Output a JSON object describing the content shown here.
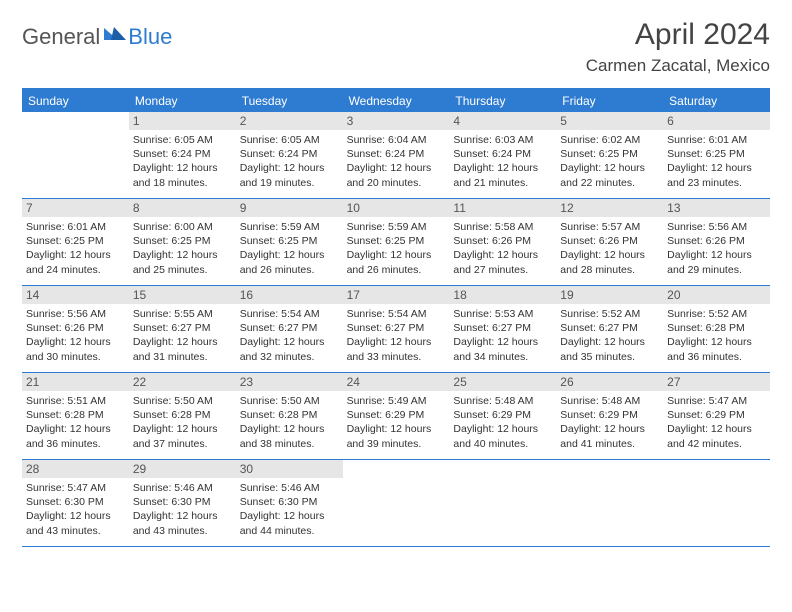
{
  "logo": {
    "general": "General",
    "blue": "Blue"
  },
  "title": "April 2024",
  "location": "Carmen Zacatal, Mexico",
  "colors": {
    "accent": "#2e7cd1",
    "daynum_bg": "#e6e6e6",
    "text": "#333333",
    "muted": "#555555",
    "bg": "#ffffff"
  },
  "fonts": {
    "title_size": 30,
    "location_size": 17,
    "weekday_size": 12,
    "daynum_size": 12,
    "body_size": 10.5
  },
  "weekdays": [
    "Sunday",
    "Monday",
    "Tuesday",
    "Wednesday",
    "Thursday",
    "Friday",
    "Saturday"
  ],
  "first_day_index": 1,
  "days": [
    {
      "n": 1,
      "sr": "6:05 AM",
      "ss": "6:24 PM",
      "dl": "12 hours and 18 minutes."
    },
    {
      "n": 2,
      "sr": "6:05 AM",
      "ss": "6:24 PM",
      "dl": "12 hours and 19 minutes."
    },
    {
      "n": 3,
      "sr": "6:04 AM",
      "ss": "6:24 PM",
      "dl": "12 hours and 20 minutes."
    },
    {
      "n": 4,
      "sr": "6:03 AM",
      "ss": "6:24 PM",
      "dl": "12 hours and 21 minutes."
    },
    {
      "n": 5,
      "sr": "6:02 AM",
      "ss": "6:25 PM",
      "dl": "12 hours and 22 minutes."
    },
    {
      "n": 6,
      "sr": "6:01 AM",
      "ss": "6:25 PM",
      "dl": "12 hours and 23 minutes."
    },
    {
      "n": 7,
      "sr": "6:01 AM",
      "ss": "6:25 PM",
      "dl": "12 hours and 24 minutes."
    },
    {
      "n": 8,
      "sr": "6:00 AM",
      "ss": "6:25 PM",
      "dl": "12 hours and 25 minutes."
    },
    {
      "n": 9,
      "sr": "5:59 AM",
      "ss": "6:25 PM",
      "dl": "12 hours and 26 minutes."
    },
    {
      "n": 10,
      "sr": "5:59 AM",
      "ss": "6:25 PM",
      "dl": "12 hours and 26 minutes."
    },
    {
      "n": 11,
      "sr": "5:58 AM",
      "ss": "6:26 PM",
      "dl": "12 hours and 27 minutes."
    },
    {
      "n": 12,
      "sr": "5:57 AM",
      "ss": "6:26 PM",
      "dl": "12 hours and 28 minutes."
    },
    {
      "n": 13,
      "sr": "5:56 AM",
      "ss": "6:26 PM",
      "dl": "12 hours and 29 minutes."
    },
    {
      "n": 14,
      "sr": "5:56 AM",
      "ss": "6:26 PM",
      "dl": "12 hours and 30 minutes."
    },
    {
      "n": 15,
      "sr": "5:55 AM",
      "ss": "6:27 PM",
      "dl": "12 hours and 31 minutes."
    },
    {
      "n": 16,
      "sr": "5:54 AM",
      "ss": "6:27 PM",
      "dl": "12 hours and 32 minutes."
    },
    {
      "n": 17,
      "sr": "5:54 AM",
      "ss": "6:27 PM",
      "dl": "12 hours and 33 minutes."
    },
    {
      "n": 18,
      "sr": "5:53 AM",
      "ss": "6:27 PM",
      "dl": "12 hours and 34 minutes."
    },
    {
      "n": 19,
      "sr": "5:52 AM",
      "ss": "6:27 PM",
      "dl": "12 hours and 35 minutes."
    },
    {
      "n": 20,
      "sr": "5:52 AM",
      "ss": "6:28 PM",
      "dl": "12 hours and 36 minutes."
    },
    {
      "n": 21,
      "sr": "5:51 AM",
      "ss": "6:28 PM",
      "dl": "12 hours and 36 minutes."
    },
    {
      "n": 22,
      "sr": "5:50 AM",
      "ss": "6:28 PM",
      "dl": "12 hours and 37 minutes."
    },
    {
      "n": 23,
      "sr": "5:50 AM",
      "ss": "6:28 PM",
      "dl": "12 hours and 38 minutes."
    },
    {
      "n": 24,
      "sr": "5:49 AM",
      "ss": "6:29 PM",
      "dl": "12 hours and 39 minutes."
    },
    {
      "n": 25,
      "sr": "5:48 AM",
      "ss": "6:29 PM",
      "dl": "12 hours and 40 minutes."
    },
    {
      "n": 26,
      "sr": "5:48 AM",
      "ss": "6:29 PM",
      "dl": "12 hours and 41 minutes."
    },
    {
      "n": 27,
      "sr": "5:47 AM",
      "ss": "6:29 PM",
      "dl": "12 hours and 42 minutes."
    },
    {
      "n": 28,
      "sr": "5:47 AM",
      "ss": "6:30 PM",
      "dl": "12 hours and 43 minutes."
    },
    {
      "n": 29,
      "sr": "5:46 AM",
      "ss": "6:30 PM",
      "dl": "12 hours and 43 minutes."
    },
    {
      "n": 30,
      "sr": "5:46 AM",
      "ss": "6:30 PM",
      "dl": "12 hours and 44 minutes."
    }
  ],
  "labels": {
    "sunrise": "Sunrise:",
    "sunset": "Sunset:",
    "daylight": "Daylight:"
  }
}
